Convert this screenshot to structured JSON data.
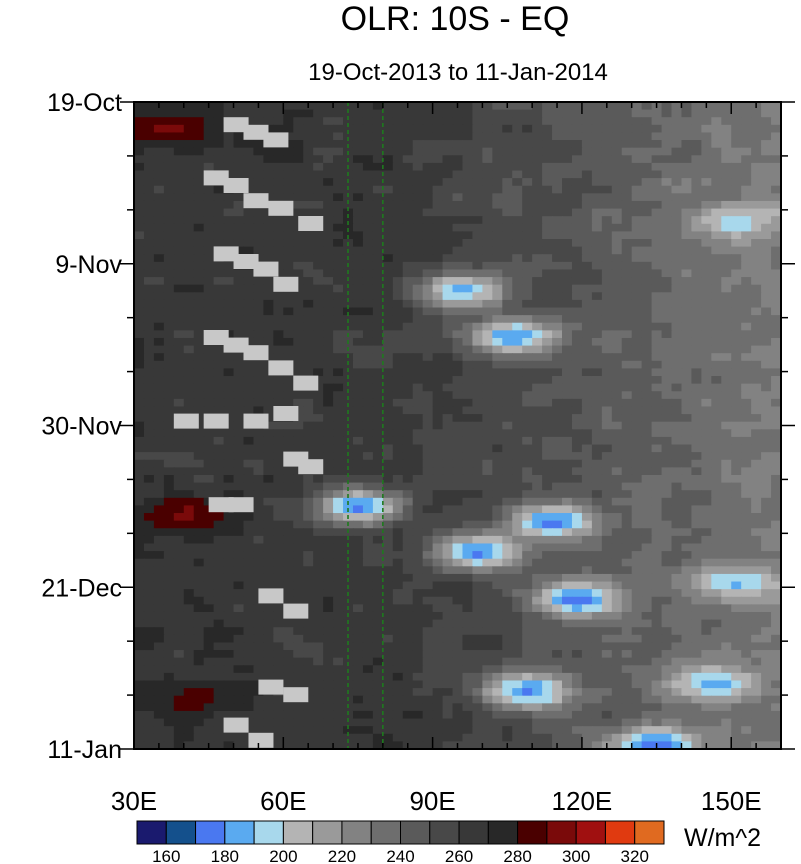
{
  "chart_data": {
    "type": "heatmap",
    "title": "OLR: 10S - EQ",
    "subtitle": "19-Oct-2013 to 11-Jan-2014",
    "x_axis": {
      "range": [
        30,
        160
      ],
      "ticks": [
        30,
        60,
        90,
        120,
        150
      ],
      "tick_labels": [
        "30E",
        "60E",
        "90E",
        "120E",
        "150E"
      ]
    },
    "y_axis": {
      "range": [
        "2013-10-19",
        "2014-01-11"
      ],
      "ticks": [
        "2013-10-19",
        "2013-11-09",
        "2013-11-30",
        "2013-12-21",
        "2014-01-11"
      ],
      "tick_labels": [
        "19-Oct",
        "9-Nov",
        "30-Nov",
        "21-Dec",
        "11-Jan"
      ]
    },
    "reference_lines_lon": [
      73,
      80
    ],
    "reference_line_color": "#1e7a1e",
    "colorbar": {
      "unit_label": "W/m^2",
      "levels": [
        160,
        170,
        180,
        190,
        200,
        210,
        220,
        230,
        240,
        250,
        260,
        270,
        280,
        290,
        300,
        310,
        320
      ],
      "level_labels": [
        "160",
        "180",
        "200",
        "220",
        "240",
        "260",
        "280",
        "300",
        "320"
      ],
      "colors": [
        "#1a1a6e",
        "#14508c",
        "#4a78f0",
        "#5aaaf0",
        "#a8d8ec",
        "#b4b4b4",
        "#9a9a9a",
        "#828282",
        "#6e6e6e",
        "#5a5a5a",
        "#484848",
        "#383838",
        "#282828",
        "#4a0000",
        "#7a0a0a",
        "#a01010",
        "#e03a10",
        "#e06a20"
      ]
    },
    "features": [
      {
        "lon": 74,
        "date": "2013-12-10",
        "olr": 158
      },
      {
        "lon": 95,
        "date": "2013-11-12",
        "olr": 168
      },
      {
        "lon": 105,
        "date": "2013-11-18",
        "olr": 162
      },
      {
        "lon": 98,
        "date": "2013-12-16",
        "olr": 160
      },
      {
        "lon": 113,
        "date": "2013-12-12",
        "olr": 162
      },
      {
        "lon": 118,
        "date": "2013-12-22",
        "olr": 158
      },
      {
        "lon": 108,
        "date": "2014-01-03",
        "olr": 162
      },
      {
        "lon": 134,
        "date": "2014-01-10",
        "olr": 162
      },
      {
        "lon": 145,
        "date": "2014-01-02",
        "olr": 175
      },
      {
        "lon": 150,
        "date": "2013-12-20",
        "olr": 180
      },
      {
        "lon": 150,
        "date": "2013-11-03",
        "olr": 185
      },
      {
        "lon": 36,
        "date": "2013-10-22",
        "olr": 300
      },
      {
        "lon": 40,
        "date": "2013-12-11",
        "olr": 298
      },
      {
        "lon": 41,
        "date": "2014-01-04",
        "olr": 290
      }
    ]
  }
}
